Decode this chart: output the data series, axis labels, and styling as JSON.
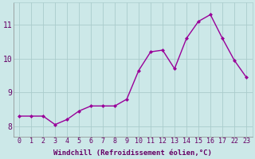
{
  "x_positions": [
    0,
    1,
    2,
    3,
    4,
    5,
    6,
    7,
    8,
    9,
    10,
    11,
    12,
    13,
    14,
    15,
    16,
    17,
    18,
    19
  ],
  "x_labels": [
    "0",
    "1",
    "2",
    "3",
    "4",
    "5",
    "6",
    "7",
    "8",
    "9",
    "10",
    "11",
    "12",
    "13",
    "14",
    "15",
    "16",
    "17",
    "22",
    "23"
  ],
  "y": [
    8.3,
    8.3,
    8.3,
    8.05,
    8.2,
    8.45,
    8.6,
    8.6,
    8.6,
    8.8,
    9.65,
    10.2,
    10.25,
    9.7,
    10.6,
    11.1,
    11.3,
    10.6,
    9.95,
    9.45
  ],
  "line_color": "#990099",
  "marker": "D",
  "marker_size": 2,
  "bg_color": "#cce8e8",
  "grid_color": "#aacccc",
  "xlabel": "Windchill (Refroidissement éolien,°C)",
  "xlim": [
    -0.5,
    19.5
  ],
  "ylim": [
    7.7,
    11.65
  ],
  "yticks": [
    8,
    9,
    10,
    11
  ],
  "xlabel_color": "#660066",
  "tick_color": "#660066",
  "tick_fontsize": 6,
  "xlabel_fontsize": 6.5,
  "line_width": 1.0
}
